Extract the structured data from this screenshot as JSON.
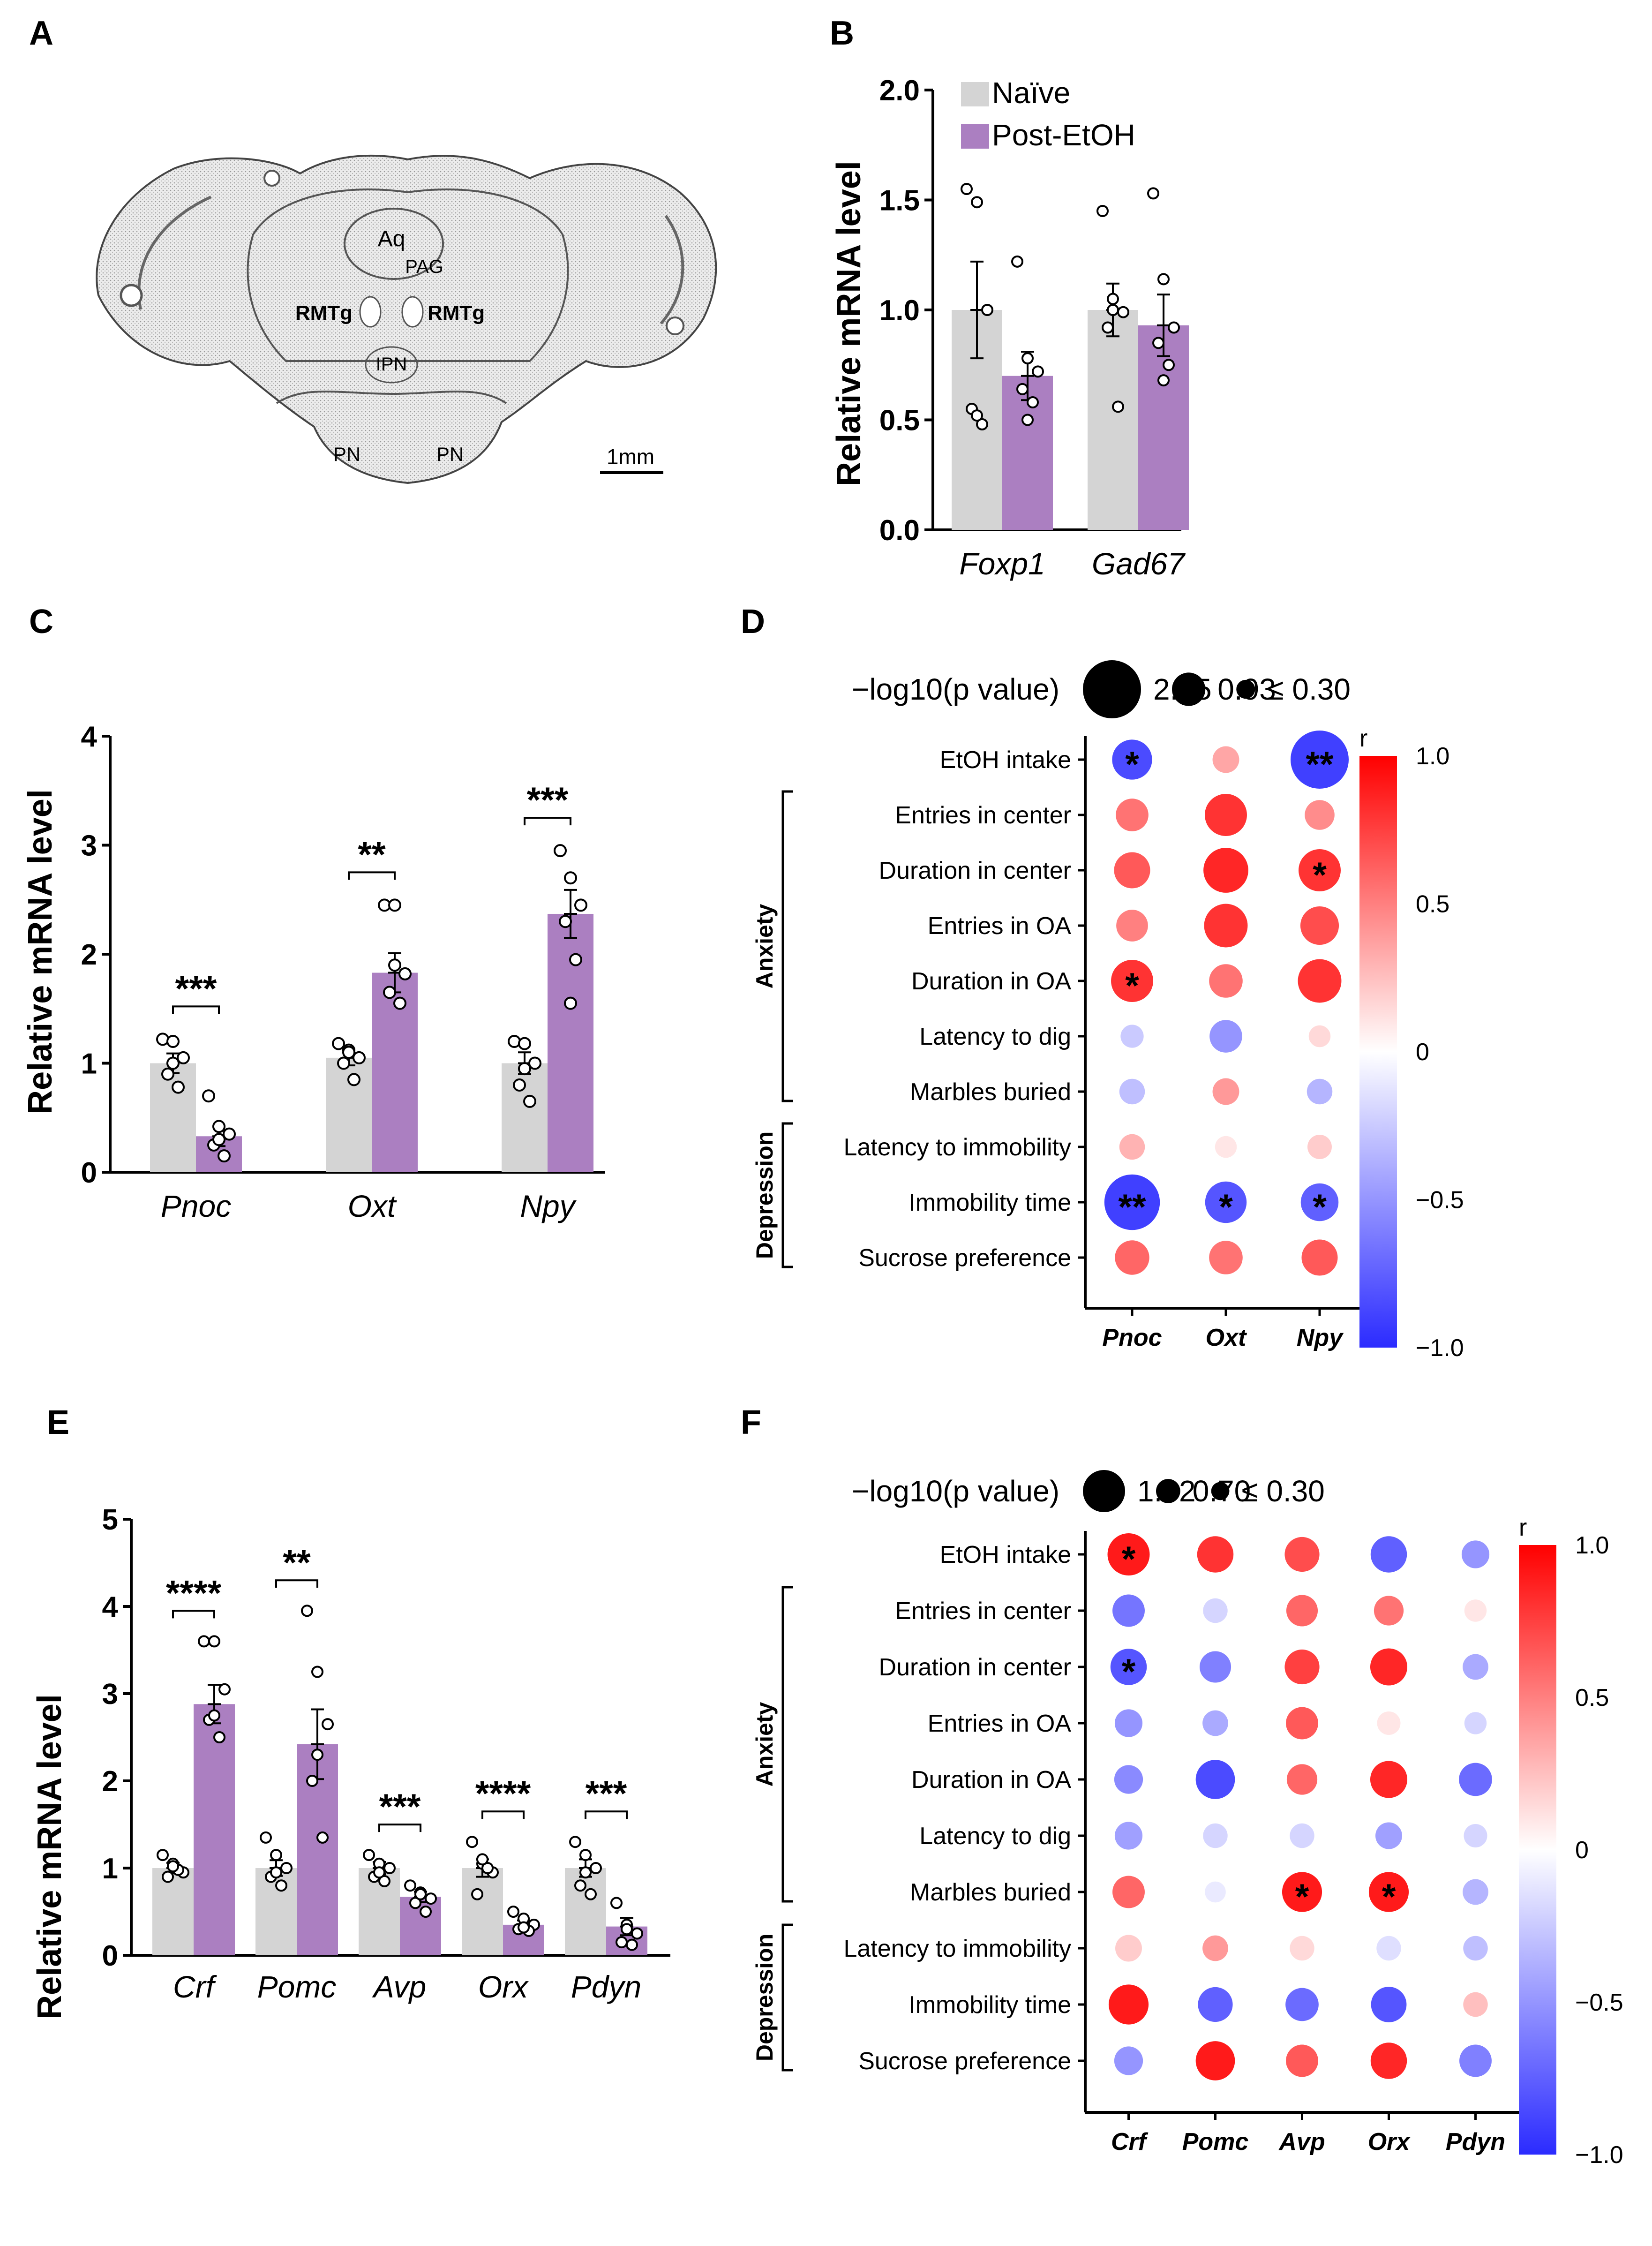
{
  "panel_labels": [
    "A",
    "B",
    "C",
    "D",
    "E",
    "F"
  ],
  "panel_a": {
    "labels": {
      "aq": "Aq",
      "pag": "PAG",
      "rmtg_left": "RMTg",
      "rmtg_right": "RMTg",
      "ipn": "IPN",
      "pn_left": "PN",
      "pn_right": "PN"
    },
    "scale_bar": "1mm"
  },
  "colors": {
    "naive": "#d4d4d4",
    "post_etoh": "#ab7fc1",
    "pos": "#ff0000",
    "neg": "#2b2bff",
    "zero": "#ffffff"
  },
  "chart_data": [
    {
      "panel": "B",
      "type": "bar",
      "ylabel": "Relative mRNA level",
      "ylim": [
        0,
        2.0
      ],
      "yticks": [
        "0.0",
        "0.5",
        "1.0",
        "1.5",
        "2.0"
      ],
      "ytick_values": [
        0,
        0.5,
        1.0,
        1.5,
        2.0
      ],
      "categories": [
        "Foxp1",
        "Gad67"
      ],
      "series": [
        {
          "name": "Naïve",
          "values": [
            1.0,
            1.0
          ],
          "sem": [
            0.22,
            0.12
          ],
          "points": [
            [
              1.55,
              1.49,
              1.0,
              0.55,
              0.48,
              0.52
            ],
            [
              1.45,
              1.05,
              0.99,
              0.92,
              0.56,
              1.0
            ]
          ]
        },
        {
          "name": "Post-EtOH",
          "values": [
            0.7,
            0.93
          ],
          "sem": [
            0.11,
            0.14
          ],
          "points": [
            [
              1.22,
              0.78,
              0.72,
              0.64,
              0.58,
              0.5
            ],
            [
              1.53,
              1.14,
              0.92,
              0.85,
              0.75,
              0.68
            ]
          ]
        }
      ],
      "significance": [
        "",
        ""
      ],
      "legend": [
        "Naïve",
        "Post-EtOH"
      ]
    },
    {
      "panel": "C",
      "type": "bar",
      "ylabel": "Relative mRNA level",
      "ylim": [
        0,
        4
      ],
      "yticks": [
        "0",
        "1",
        "2",
        "3",
        "4"
      ],
      "ytick_values": [
        0,
        1,
        2,
        3,
        4
      ],
      "categories": [
        "Pnoc",
        "Oxt",
        "Npy"
      ],
      "series": [
        {
          "name": "Naïve",
          "values": [
            1.0,
            1.05,
            1.0
          ],
          "sem": [
            0.09,
            0.07,
            0.1
          ],
          "points": [
            [
              1.22,
              1.2,
              1.05,
              0.9,
              0.78,
              1.0
            ],
            [
              1.18,
              1.12,
              1.05,
              1.0,
              0.85,
              1.1
            ],
            [
              1.2,
              1.18,
              1.0,
              0.8,
              0.65,
              0.95
            ]
          ]
        },
        {
          "name": "Post-EtOH",
          "values": [
            0.33,
            1.83,
            2.37
          ],
          "sem": [
            0.09,
            0.18,
            0.22
          ],
          "points": [
            [
              0.7,
              0.42,
              0.35,
              0.25,
              0.15,
              0.3
            ],
            [
              2.45,
              2.45,
              1.82,
              1.65,
              1.55,
              1.9
            ],
            [
              2.95,
              2.7,
              2.45,
              2.3,
              1.95,
              1.55
            ]
          ]
        }
      ],
      "significance": [
        "***",
        "**",
        "***"
      ]
    },
    {
      "panel": "E",
      "type": "bar",
      "ylabel": "Relative mRNA level",
      "ylim": [
        0,
        5
      ],
      "yticks": [
        "0",
        "1",
        "2",
        "3",
        "4",
        "5"
      ],
      "ytick_values": [
        0,
        1,
        2,
        3,
        4,
        5
      ],
      "categories": [
        "Crf",
        "Pomc",
        "Avp",
        "Orx",
        "Pdyn"
      ],
      "series": [
        {
          "name": "Naïve",
          "values": [
            1.0,
            1.0,
            1.0,
            1.0,
            1.0
          ],
          "sem": [
            0.06,
            0.09,
            0.07,
            0.1,
            0.1
          ],
          "points": [
            [
              1.15,
              1.05,
              0.95,
              0.9,
              0.98,
              1.02
            ],
            [
              1.35,
              1.15,
              1.0,
              0.9,
              0.8,
              0.95
            ],
            [
              1.15,
              1.05,
              1.0,
              0.9,
              0.85,
              0.95
            ],
            [
              1.3,
              1.05,
              0.95,
              0.7,
              1.0,
              1.1
            ],
            [
              1.3,
              1.15,
              1.0,
              0.8,
              0.7,
              0.95
            ]
          ]
        },
        {
          "name": "Post-EtOH",
          "values": [
            2.88,
            2.42,
            0.67,
            0.35,
            0.33
          ],
          "sem": [
            0.22,
            0.4,
            0.06,
            0.05,
            0.1
          ],
          "points": [
            [
              3.6,
              3.6,
              3.05,
              2.7,
              2.5,
              2.75
            ],
            [
              3.95,
              3.25,
              2.65,
              2.0,
              1.35,
              2.3
            ],
            [
              0.8,
              0.72,
              0.65,
              0.6,
              0.5,
              0.7
            ],
            [
              0.5,
              0.42,
              0.35,
              0.3,
              0.28,
              0.32
            ],
            [
              0.6,
              0.35,
              0.25,
              0.15,
              0.12,
              0.3
            ]
          ]
        }
      ],
      "significance": [
        "****",
        "**",
        "***",
        "****",
        "***"
      ]
    },
    {
      "panel": "D",
      "type": "heatmap",
      "columns": [
        "Pnoc",
        "Oxt",
        "Npy"
      ],
      "rows": [
        "EtOH intake",
        "Entries in center",
        "Duration in center",
        "Entries in OA",
        "Duration in OA",
        "Latency to dig",
        "Marbles buried",
        "Latency to immobility",
        "Immobility time",
        "Sucrose preference"
      ],
      "groups": [
        {
          "name": "Anxiety",
          "from": 1,
          "to": 6
        },
        {
          "name": "Depression",
          "from": 7,
          "to": 9
        }
      ],
      "size_legend": {
        "title": "−log10(p value)",
        "values": [
          "2.85",
          "0.93",
          "≤ 0.30"
        ],
        "max": 2.85
      },
      "colorbar": {
        "label": "r",
        "ticks": [
          "1.0",
          "0.5",
          "0",
          "−0.5",
          "−1.0"
        ],
        "tick_values": [
          1.0,
          0.5,
          0,
          -0.5,
          -1.0
        ]
      },
      "r": [
        [
          -0.85,
          0.35,
          -0.9
        ],
        [
          0.55,
          0.8,
          0.45
        ],
        [
          0.65,
          0.85,
          0.8
        ],
        [
          0.5,
          0.8,
          0.7
        ],
        [
          0.8,
          0.55,
          0.8
        ],
        [
          -0.25,
          -0.5,
          0.15
        ],
        [
          -0.3,
          0.4,
          -0.35
        ],
        [
          0.3,
          0.1,
          0.2
        ],
        [
          -0.9,
          -0.8,
          -0.75
        ],
        [
          0.6,
          0.55,
          0.65
        ]
      ],
      "neglog10p": [
        [
          1.35,
          0.6,
          2.85
        ],
        [
          0.9,
          1.5,
          0.75
        ],
        [
          1.1,
          1.7,
          1.5
        ],
        [
          0.85,
          1.6,
          1.25
        ],
        [
          1.5,
          0.95,
          1.6
        ],
        [
          0.45,
          0.9,
          0.4
        ],
        [
          0.55,
          0.6,
          0.55
        ],
        [
          0.55,
          0.4,
          0.5
        ],
        [
          2.6,
          1.45,
          1.2
        ],
        [
          1.0,
          0.95,
          1.1
        ]
      ],
      "stars": [
        [
          "*",
          "",
          "**"
        ],
        [
          "",
          "",
          ""
        ],
        [
          "",
          "",
          "*"
        ],
        [
          "",
          "",
          ""
        ],
        [
          "*",
          "",
          ""
        ],
        [
          "",
          "",
          ""
        ],
        [
          "",
          "",
          ""
        ],
        [
          "",
          "",
          ""
        ],
        [
          "**",
          "*",
          "*"
        ],
        [
          "",
          "",
          ""
        ]
      ]
    },
    {
      "panel": "F",
      "type": "heatmap",
      "columns": [
        "Crf",
        "Pomc",
        "Avp",
        "Orx",
        "Pdyn"
      ],
      "rows": [
        "EtOH intake",
        "Entries in center",
        "Duration in center",
        "Entries in OA",
        "Duration in OA",
        "Latency to dig",
        "Marbles buried",
        "Latency to immobility",
        "Immobility time",
        "Sucrose preference"
      ],
      "groups": [
        {
          "name": "Anxiety",
          "from": 1,
          "to": 6
        },
        {
          "name": "Depression",
          "from": 7,
          "to": 9
        }
      ],
      "size_legend": {
        "title": "−log10(p value)",
        "values": [
          "1.62",
          "0.70",
          "≤ 0.30"
        ],
        "max": 1.62
      },
      "colorbar": {
        "label": "r",
        "ticks": [
          "1.0",
          "0.5",
          "0",
          "−0.5",
          "−1.0"
        ],
        "tick_values": [
          1.0,
          0.5,
          0,
          -0.5,
          -1.0
        ]
      },
      "r": [
        [
          0.9,
          0.8,
          0.7,
          -0.75,
          -0.5
        ],
        [
          -0.65,
          -0.2,
          0.6,
          0.55,
          0.1
        ],
        [
          -0.8,
          -0.6,
          0.75,
          0.85,
          -0.4
        ],
        [
          -0.5,
          -0.4,
          0.65,
          0.1,
          -0.2
        ],
        [
          -0.55,
          -0.85,
          0.6,
          0.85,
          -0.7
        ],
        [
          -0.45,
          -0.2,
          -0.2,
          -0.45,
          -0.2
        ],
        [
          0.6,
          -0.1,
          0.9,
          0.9,
          -0.35
        ],
        [
          0.2,
          0.4,
          0.15,
          -0.15,
          -0.3
        ],
        [
          0.9,
          -0.75,
          -0.7,
          -0.8,
          0.25
        ],
        [
          -0.5,
          0.9,
          0.65,
          0.85,
          -0.6
        ]
      ],
      "neglog10p": [
        [
          1.62,
          1.2,
          1.1,
          1.2,
          0.7
        ],
        [
          0.95,
          0.55,
          0.9,
          0.8,
          0.45
        ],
        [
          1.2,
          0.9,
          1.1,
          1.25,
          0.6
        ],
        [
          0.7,
          0.6,
          0.95,
          0.5,
          0.45
        ],
        [
          0.75,
          1.4,
          0.85,
          1.25,
          1.0
        ],
        [
          0.7,
          0.55,
          0.55,
          0.65,
          0.5
        ],
        [
          0.95,
          0.4,
          1.45,
          1.45,
          0.6
        ],
        [
          0.65,
          0.6,
          0.55,
          0.55,
          0.55
        ],
        [
          1.45,
          1.1,
          1.0,
          1.15,
          0.55
        ],
        [
          0.75,
          1.4,
          0.95,
          1.2,
          0.95
        ]
      ],
      "stars": [
        [
          "*",
          "",
          "",
          "",
          ""
        ],
        [
          "",
          "",
          "",
          "",
          ""
        ],
        [
          "*",
          "",
          "",
          "",
          ""
        ],
        [
          "",
          "",
          "",
          "",
          ""
        ],
        [
          "",
          "",
          "",
          "",
          ""
        ],
        [
          "",
          "",
          "",
          "",
          ""
        ],
        [
          "",
          "",
          "*",
          "*",
          ""
        ],
        [
          "",
          "",
          "",
          "",
          ""
        ],
        [
          "",
          "",
          "",
          "",
          ""
        ],
        [
          "",
          "",
          "",
          "",
          ""
        ]
      ]
    }
  ]
}
